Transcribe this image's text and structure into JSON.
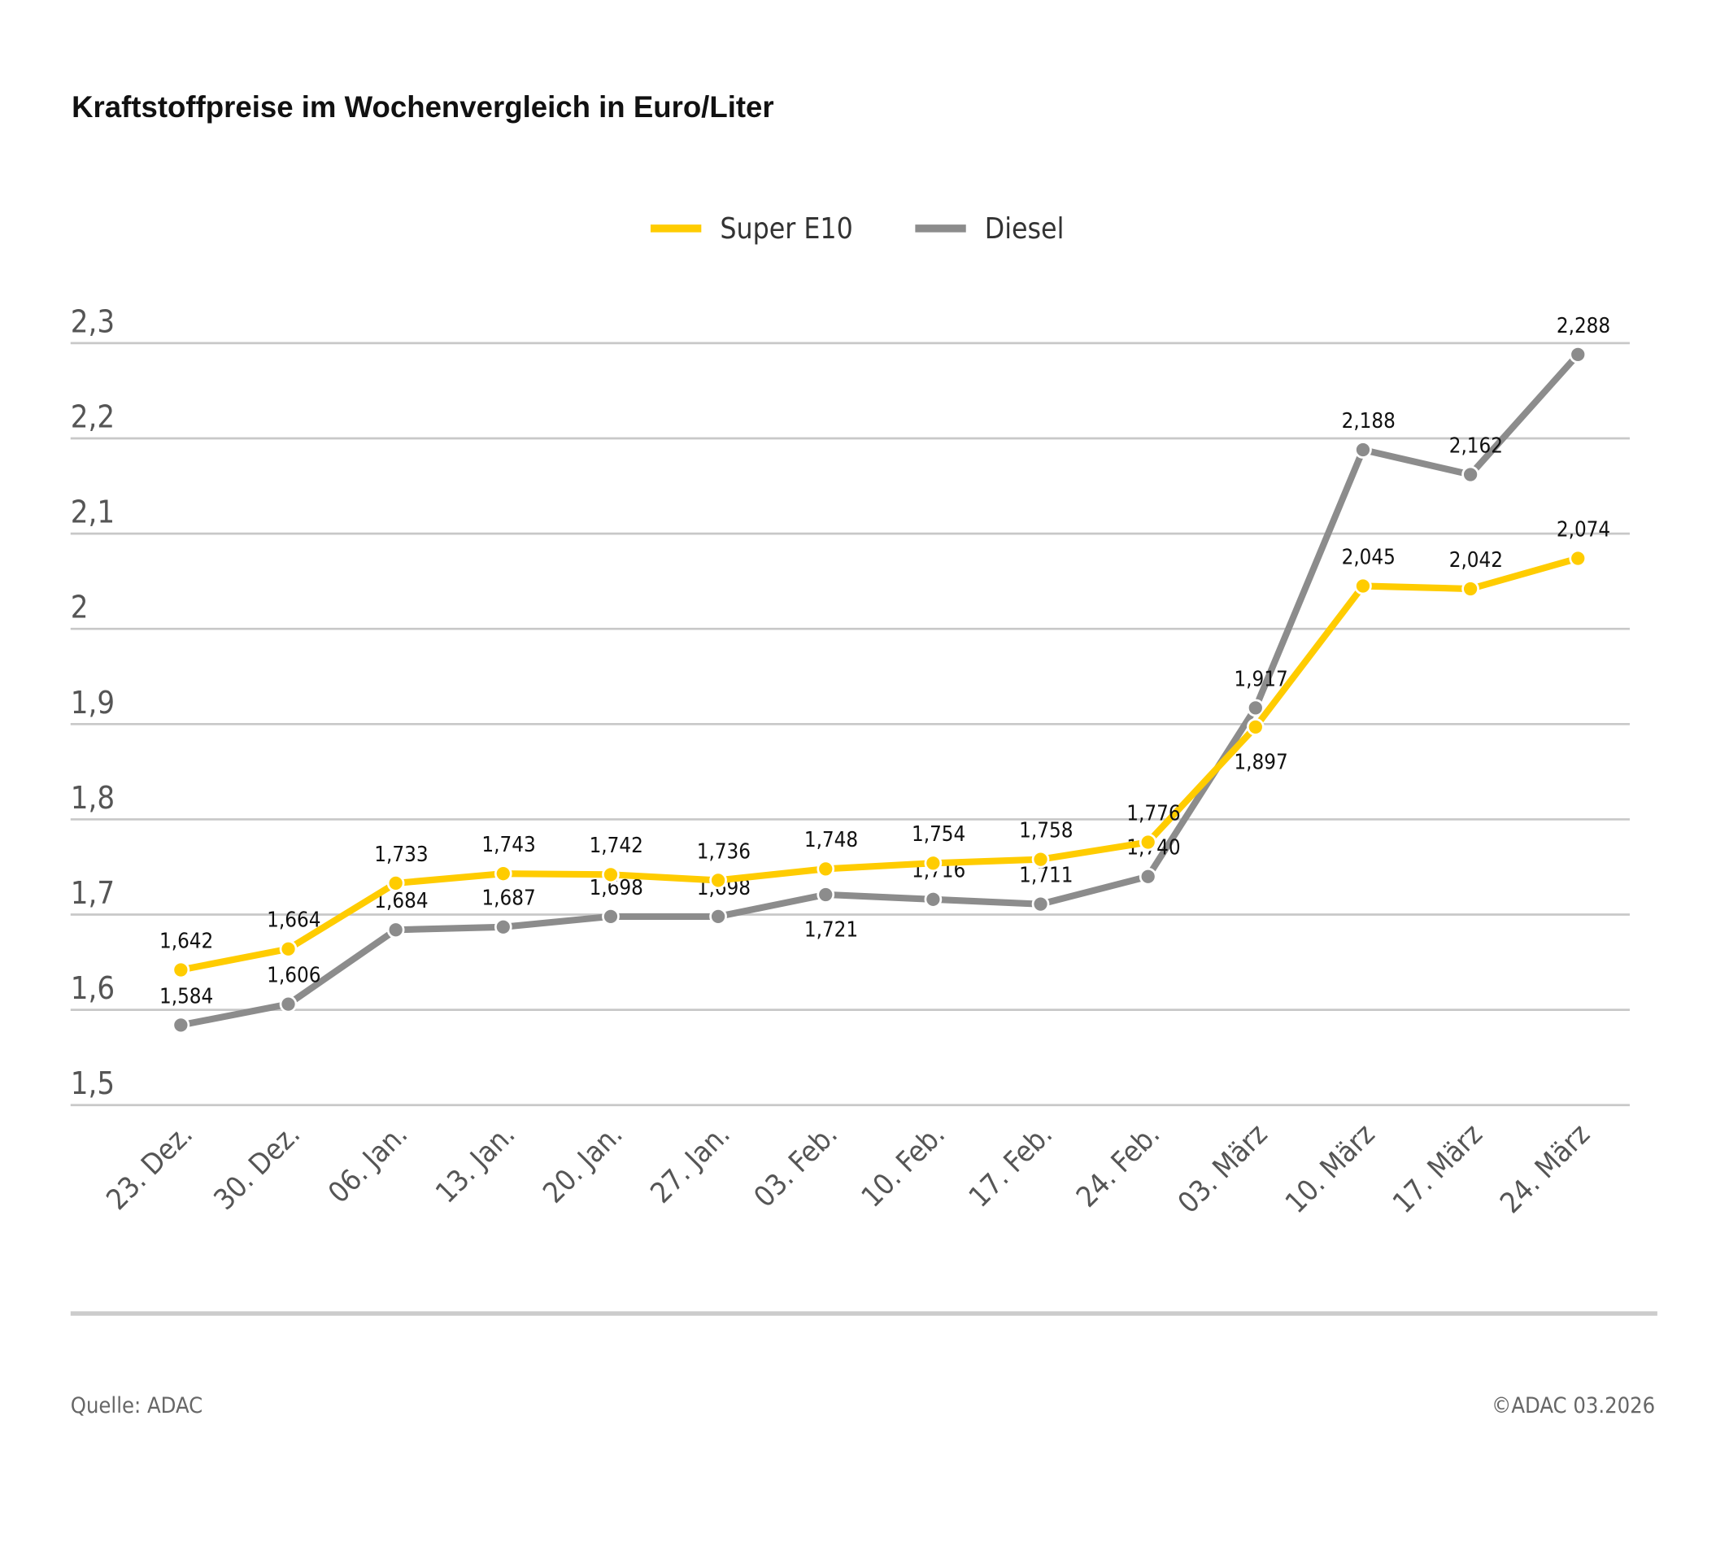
{
  "chart_data": {
    "type": "line",
    "title": "Kraftstoffpreise im Wochenvergleich in Euro/Liter",
    "categories": [
      "23. Dez.",
      "30. Dez.",
      "06. Jan.",
      "13. Jan.",
      "20. Jan.",
      "27. Jan.",
      "03. Feb.",
      "10. Feb.",
      "17. Feb.",
      "24. Feb.",
      "03. März",
      "10. März",
      "17. März",
      "24. März"
    ],
    "series": [
      {
        "name": "Super E10",
        "color": "#FFCC00",
        "values": [
          1.642,
          1.664,
          1.733,
          1.743,
          1.742,
          1.736,
          1.748,
          1.754,
          1.758,
          1.776,
          1.897,
          2.045,
          2.042,
          2.074
        ],
        "labels": [
          "1,642",
          "1,664",
          "1,733",
          "1,743",
          "1,742",
          "1,736",
          "1,748",
          "1,754",
          "1,758",
          "1,776",
          "1,897",
          "2,045",
          "2,042",
          "2,074"
        ]
      },
      {
        "name": "Diesel",
        "color": "#8C8C8C",
        "values": [
          1.584,
          1.606,
          1.684,
          1.687,
          1.698,
          1.698,
          1.721,
          1.716,
          1.711,
          1.74,
          1.917,
          2.188,
          2.162,
          2.288
        ],
        "labels": [
          "1,584",
          "1,606",
          "1,684",
          "1,687",
          "1,698",
          "1,698",
          "1,721",
          "1,716",
          "1,711",
          "1,740",
          "1,917",
          "2,188",
          "2,162",
          "2,288"
        ]
      }
    ],
    "ylim": [
      1.5,
      2.3
    ],
    "yticks": [
      1.5,
      1.6,
      1.7,
      1.8,
      1.9,
      2,
      2.1,
      2.2,
      2.3
    ],
    "ytick_labels": [
      "1,5",
      "1,6",
      "1,7",
      "1,8",
      "1,9",
      "2",
      "2,1",
      "2,2",
      "2,3"
    ],
    "grid": true,
    "legend": "top-center",
    "xlabel": "",
    "ylabel": ""
  },
  "footer": {
    "source": "Quelle: ADAC",
    "copyright": "©ADAC 03.2026"
  }
}
